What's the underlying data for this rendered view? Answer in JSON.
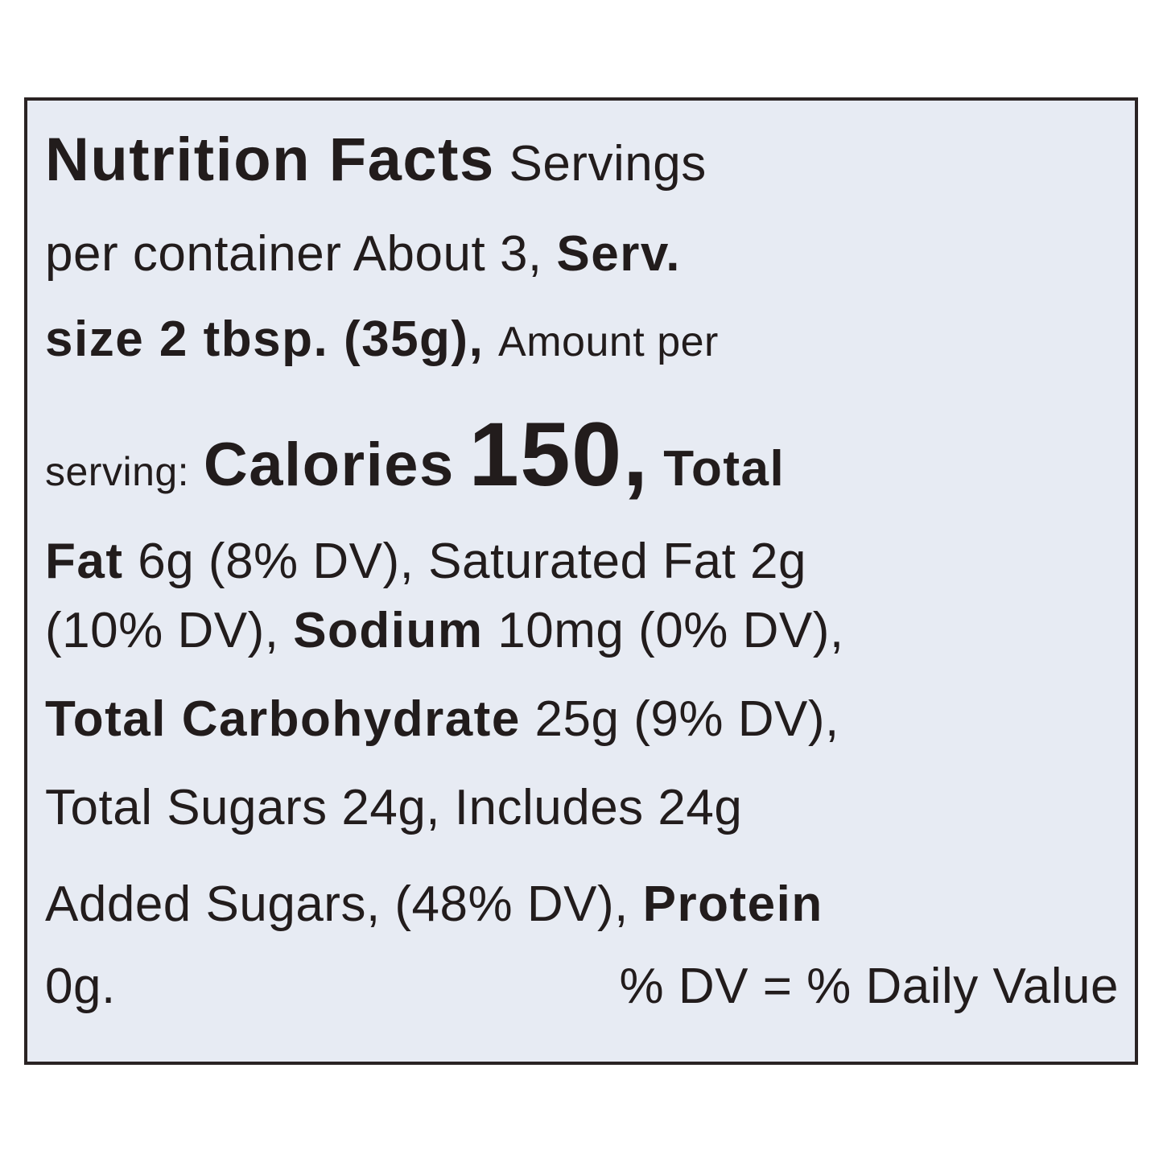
{
  "label": {
    "title": "Nutrition Facts",
    "servings_label": "Servings",
    "servings_line2": "per container About 3,",
    "serv_label": "Serv.",
    "serv_size": "size 2 tbsp. (35g),",
    "amount_per": "Amount per",
    "serving": "serving:",
    "calories_label": "Calories",
    "calories_value": "150",
    "comma": ",",
    "total": "Total",
    "fat": "Fat",
    "fat_value": "6g (8% DV), Saturated Fat 2g",
    "sat_dv": "(10% DV),",
    "sodium": "Sodium",
    "sodium_value": "10mg (0% DV),",
    "carb": "Total Carbohydrate",
    "carb_value": "25g (9% DV),",
    "sugars": "Total Sugars 24g, Includes 24g",
    "added": "Added Sugars, (48% DV),",
    "protein": "Protein",
    "protein_value": "0g.",
    "dv_note": "% DV = % Daily Value"
  }
}
